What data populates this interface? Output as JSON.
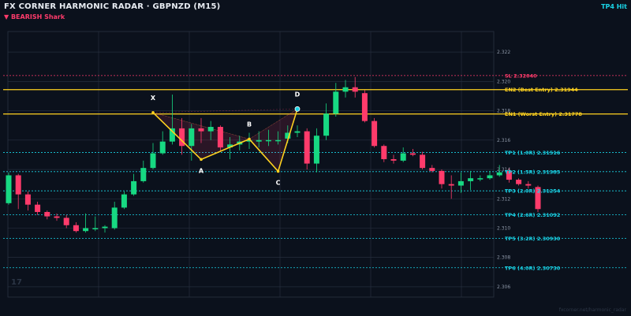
{
  "header": {
    "title": "FX CORNER HARMONIC RADAR  ·  GBPNZD (M15)",
    "subtitle": "▼ BEARISH  Shark",
    "status": "TP4 Hit"
  },
  "watermark": "17",
  "footer": "fxcorner.net/harmonic_radar",
  "colors": {
    "background": "#0b111c",
    "bull": "#17d982",
    "bear": "#ff3b6b",
    "pattern": "#ffd21f",
    "sl": "#ff3b6b",
    "entry": "#ffd21f",
    "tp": "#19d3e6",
    "grid": "#2a3342"
  },
  "chart_data": {
    "type": "candlestick",
    "symbol": "GBPNZD",
    "timeframe": "M15",
    "ylim": [
      2.3053,
      2.3234
    ],
    "yticks": [
      2.306,
      2.308,
      2.31,
      2.312,
      2.314,
      2.316,
      2.318,
      2.32,
      2.322
    ],
    "ytick_labels": [
      "2.306",
      "2.308",
      "2.310",
      "2.312",
      "2.314",
      "2.316",
      "2.318",
      "2.320",
      "2.322"
    ],
    "grid": true,
    "candles": [
      {
        "o": 2.3117,
        "h": 2.3138,
        "l": 2.3116,
        "c": 2.3136
      },
      {
        "o": 2.3136,
        "h": 2.3137,
        "l": 2.3113,
        "c": 2.3123
      },
      {
        "o": 2.3123,
        "h": 2.3125,
        "l": 2.3112,
        "c": 2.3116
      },
      {
        "o": 2.3116,
        "h": 2.3118,
        "l": 2.3109,
        "c": 2.3111
      },
      {
        "o": 2.3111,
        "h": 2.3112,
        "l": 2.3106,
        "c": 2.3108
      },
      {
        "o": 2.3108,
        "h": 2.311,
        "l": 2.3105,
        "c": 2.3107
      },
      {
        "o": 2.3107,
        "h": 2.3109,
        "l": 2.31,
        "c": 2.3102
      },
      {
        "o": 2.3102,
        "h": 2.3104,
        "l": 2.3097,
        "c": 2.3098
      },
      {
        "o": 2.3098,
        "h": 2.311,
        "l": 2.3097,
        "c": 2.31
      },
      {
        "o": 2.31,
        "h": 2.3108,
        "l": 2.3098,
        "c": 2.31
      },
      {
        "o": 2.31,
        "h": 2.3102,
        "l": 2.3097,
        "c": 2.3101
      },
      {
        "o": 2.31,
        "h": 2.3118,
        "l": 2.3099,
        "c": 2.3114
      },
      {
        "o": 2.3114,
        "h": 2.3125,
        "l": 2.3113,
        "c": 2.3123
      },
      {
        "o": 2.3123,
        "h": 2.3137,
        "l": 2.3122,
        "c": 2.3132
      },
      {
        "o": 2.3132,
        "h": 2.3146,
        "l": 2.3131,
        "c": 2.3141
      },
      {
        "o": 2.3141,
        "h": 2.3158,
        "l": 2.314,
        "c": 2.3151
      },
      {
        "o": 2.3151,
        "h": 2.3166,
        "l": 2.315,
        "c": 2.3159
      },
      {
        "o": 2.3159,
        "h": 2.3191,
        "l": 2.3157,
        "c": 2.3168
      },
      {
        "o": 2.3168,
        "h": 2.3175,
        "l": 2.315,
        "c": 2.3156
      },
      {
        "o": 2.3156,
        "h": 2.3171,
        "l": 2.3146,
        "c": 2.3168
      },
      {
        "o": 2.3168,
        "h": 2.3175,
        "l": 2.3158,
        "c": 2.3166
      },
      {
        "o": 2.3166,
        "h": 2.3173,
        "l": 2.316,
        "c": 2.3169
      },
      {
        "o": 2.3169,
        "h": 2.317,
        "l": 2.3152,
        "c": 2.3155
      },
      {
        "o": 2.3155,
        "h": 2.3162,
        "l": 2.3147,
        "c": 2.3157
      },
      {
        "o": 2.3157,
        "h": 2.3163,
        "l": 2.3153,
        "c": 2.3159
      },
      {
        "o": 2.3159,
        "h": 2.3165,
        "l": 2.3154,
        "c": 2.316
      },
      {
        "o": 2.3159,
        "h": 2.3166,
        "l": 2.3155,
        "c": 2.316
      },
      {
        "o": 2.316,
        "h": 2.3167,
        "l": 2.3156,
        "c": 2.316
      },
      {
        "o": 2.316,
        "h": 2.3166,
        "l": 2.3157,
        "c": 2.316
      },
      {
        "o": 2.3161,
        "h": 2.317,
        "l": 2.3158,
        "c": 2.3165
      },
      {
        "o": 2.3165,
        "h": 2.317,
        "l": 2.3162,
        "c": 2.3166
      },
      {
        "o": 2.3166,
        "h": 2.3168,
        "l": 2.314,
        "c": 2.3144
      },
      {
        "o": 2.3144,
        "h": 2.3168,
        "l": 2.3138,
        "c": 2.3163
      },
      {
        "o": 2.3163,
        "h": 2.3185,
        "l": 2.316,
        "c": 2.3178
      },
      {
        "o": 2.3178,
        "h": 2.3199,
        "l": 2.3176,
        "c": 2.3193
      },
      {
        "o": 2.3193,
        "h": 2.3201,
        "l": 2.3189,
        "c": 2.3196
      },
      {
        "o": 2.3196,
        "h": 2.3203,
        "l": 2.3189,
        "c": 2.3193
      },
      {
        "o": 2.3192,
        "h": 2.3194,
        "l": 2.3172,
        "c": 2.3173
      },
      {
        "o": 2.3173,
        "h": 2.3175,
        "l": 2.3155,
        "c": 2.3156
      },
      {
        "o": 2.3156,
        "h": 2.3157,
        "l": 2.3145,
        "c": 2.3147
      },
      {
        "o": 2.3147,
        "h": 2.315,
        "l": 2.3144,
        "c": 2.3146
      },
      {
        "o": 2.3146,
        "h": 2.3155,
        "l": 2.3145,
        "c": 2.3151
      },
      {
        "o": 2.3151,
        "h": 2.3154,
        "l": 2.3149,
        "c": 2.315
      },
      {
        "o": 2.315,
        "h": 2.3152,
        "l": 2.314,
        "c": 2.3141
      },
      {
        "o": 2.3141,
        "h": 2.3143,
        "l": 2.3138,
        "c": 2.3139
      },
      {
        "o": 2.3139,
        "h": 2.314,
        "l": 2.3127,
        "c": 2.313
      },
      {
        "o": 2.313,
        "h": 2.3136,
        "l": 2.312,
        "c": 2.3129
      },
      {
        "o": 2.3129,
        "h": 2.3138,
        "l": 2.3124,
        "c": 2.3132
      },
      {
        "o": 2.3132,
        "h": 2.3139,
        "l": 2.3126,
        "c": 2.3134
      },
      {
        "o": 2.3134,
        "h": 2.3136,
        "l": 2.3132,
        "c": 2.3134
      },
      {
        "o": 2.3134,
        "h": 2.3139,
        "l": 2.3133,
        "c": 2.3136
      },
      {
        "o": 2.3136,
        "h": 2.3143,
        "l": 2.3135,
        "c": 2.3138
      },
      {
        "o": 2.3139,
        "h": 2.3141,
        "l": 2.3131,
        "c": 2.3133
      },
      {
        "o": 2.3133,
        "h": 2.3134,
        "l": 2.3129,
        "c": 2.313
      },
      {
        "o": 2.313,
        "h": 2.3132,
        "l": 2.3127,
        "c": 2.3129
      },
      {
        "o": 2.3128,
        "h": 2.3129,
        "l": 2.3111,
        "c": 2.3113
      }
    ],
    "pattern": {
      "name": "Shark",
      "direction": "BEARISH",
      "points": [
        {
          "label": "X",
          "candle": 15,
          "price": 2.31788
        },
        {
          "label": "A",
          "candle": 20,
          "price": 2.31468
        },
        {
          "label": "B",
          "candle": 25,
          "price": 2.31607
        },
        {
          "label": "C",
          "candle": 28,
          "price": 2.31387
        },
        {
          "label": "D",
          "candle": 30,
          "price": 2.31812
        }
      ]
    },
    "levels": [
      {
        "kind": "sl",
        "label": "SL  2.32040",
        "price": 2.3204
      },
      {
        "kind": "entry",
        "label": "EN2 (Best Entry)  2.31944",
        "price": 2.31944
      },
      {
        "kind": "entry",
        "label": "EN1 (Worst Entry)  2.31778",
        "price": 2.31778
      },
      {
        "kind": "tp",
        "label": "TP1 (1.0R)  2.31516",
        "price": 2.31516
      },
      {
        "kind": "tp",
        "label": "TP2 (1.5R)  2.31385",
        "price": 2.31385
      },
      {
        "kind": "tp",
        "label": "TP3 (2.0R)  2.31254",
        "price": 2.31254
      },
      {
        "kind": "tp",
        "label": "TP4 (2.6R)  2.31092",
        "price": 2.31092
      },
      {
        "kind": "tp",
        "label": "TP5 (3.2R)  2.30930",
        "price": 2.3093
      },
      {
        "kind": "tp",
        "label": "TP6 (4.0R)  2.30730",
        "price": 2.3073
      }
    ]
  }
}
